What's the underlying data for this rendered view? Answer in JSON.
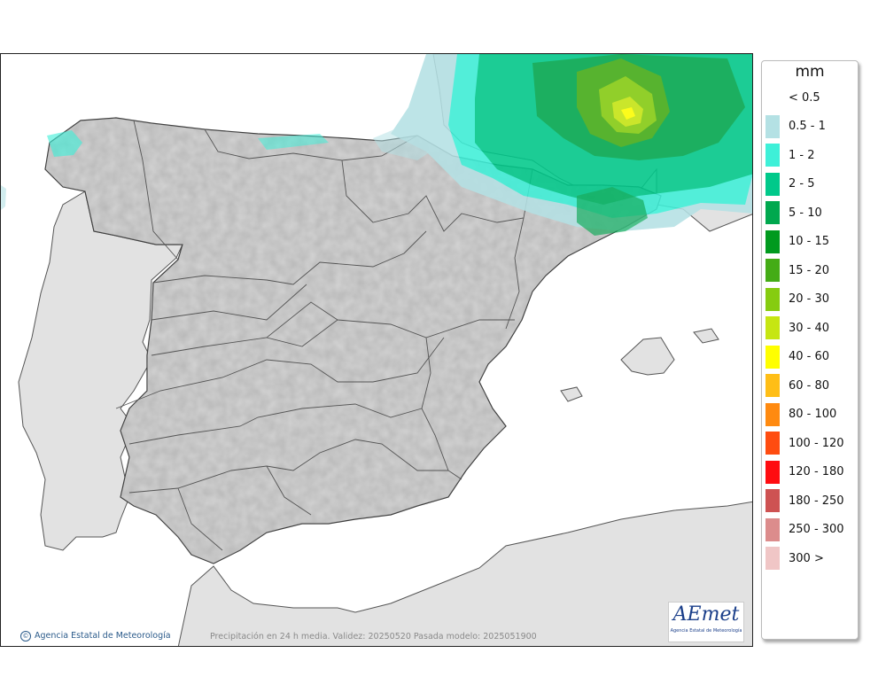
{
  "map": {
    "credit": "Agencia Estatal de Meteorología",
    "validity_text": "Precipitación en 24 h media. Validez: 20250520 Pasada modelo: 2025051900",
    "logo_text": "AEmet",
    "logo_subtext": "Agencia Estatal de Meteorología"
  },
  "legend": {
    "unit": "mm",
    "items": [
      {
        "label": "< 0.5",
        "color": "#ffffff"
      },
      {
        "label": "0.5 - 1",
        "color": "#b4e1e4"
      },
      {
        "label": "1 - 2",
        "color": "#3ef0d8"
      },
      {
        "label": "2 - 5",
        "color": "#00c98a"
      },
      {
        "label": "5 - 10",
        "color": "#00a84e"
      },
      {
        "label": "10 - 15",
        "color": "#009a1e"
      },
      {
        "label": "15 - 20",
        "color": "#44ac16"
      },
      {
        "label": "20 - 30",
        "color": "#86cc10"
      },
      {
        "label": "30 - 40",
        "color": "#c6e612"
      },
      {
        "label": "40 - 60",
        "color": "#ffff00"
      },
      {
        "label": "60 - 80",
        "color": "#ffbe16"
      },
      {
        "label": "80 - 100",
        "color": "#ff8a10"
      },
      {
        "label": "100 - 120",
        "color": "#ff4c10"
      },
      {
        "label": "120 - 180",
        "color": "#ff0c10"
      },
      {
        "label": "180 - 250",
        "color": "#ce5252"
      },
      {
        "label": "250 - 300",
        "color": "#dc8c8c"
      },
      {
        "label": "300 >",
        "color": "#f0c6c6"
      }
    ]
  }
}
